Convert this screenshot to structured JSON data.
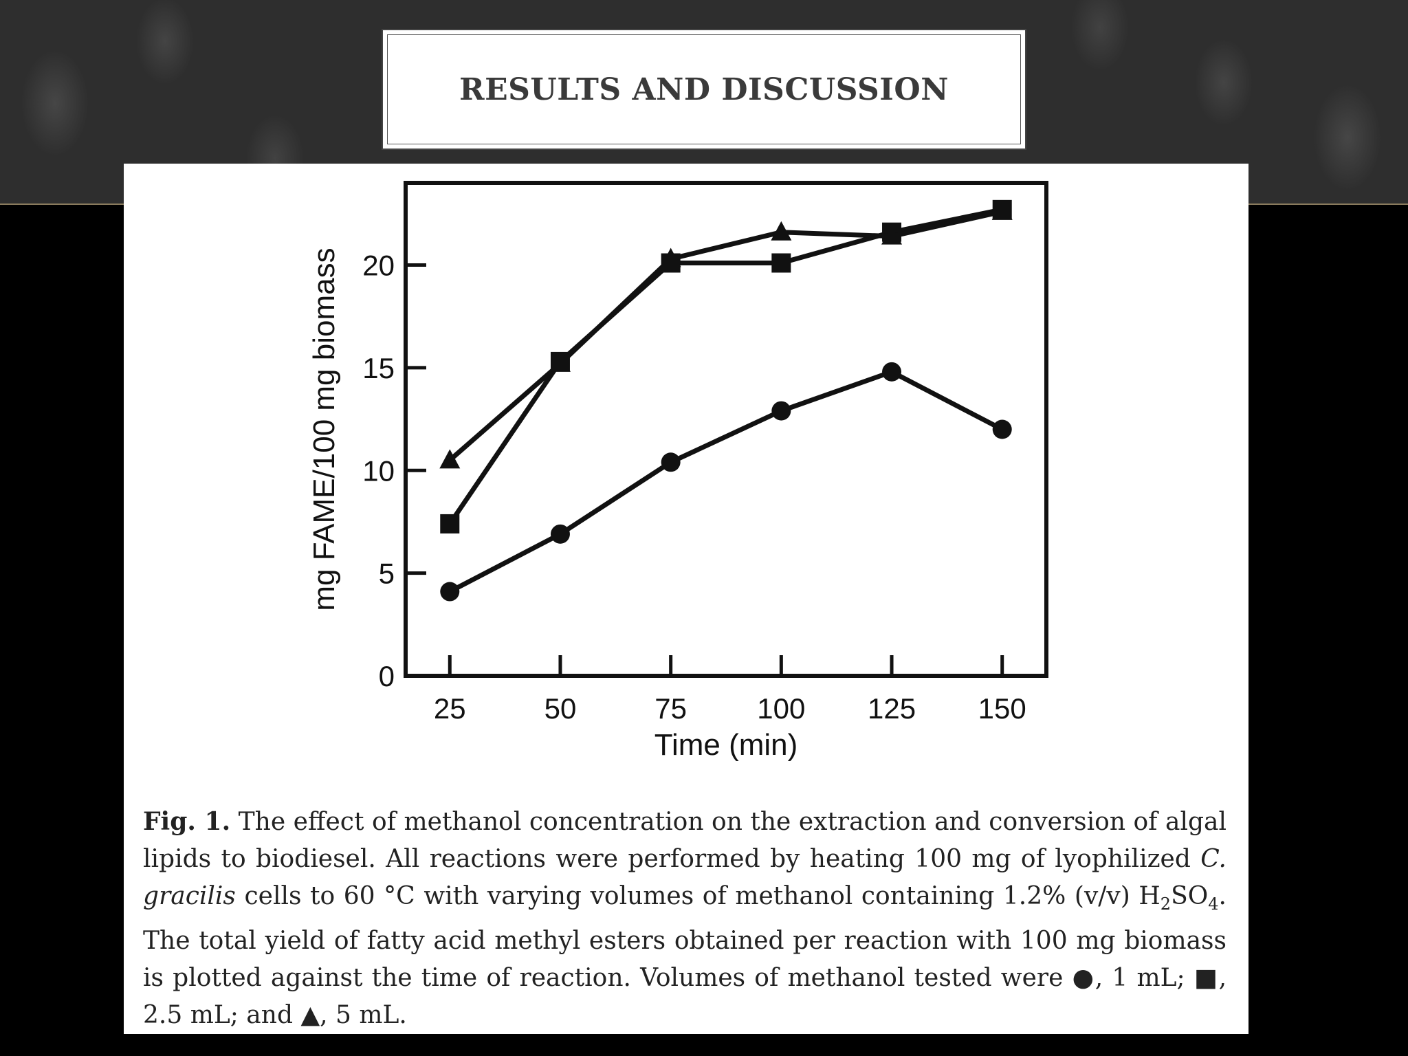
{
  "slide": {
    "title": "RESULTS AND DISCUSSION"
  },
  "caption": {
    "fig_label": "Fig. 1.",
    "text_1": " The effect of methanol concentration on the extraction and conversion of algal lipids to biodiesel. All reactions were performed by heating 100 mg of lyophilized ",
    "species": "C. gracilis",
    "text_2": " cells to 60 °C with varying volumes of methanol containing 1.2% (v/v) H",
    "sub_1": "2",
    "text_3": "SO",
    "sub_2": "4",
    "text_4": ". The total yield of fatty acid methyl esters obtained per reaction with 100 mg biomass is plotted against the time of reaction. Volumes of methanol tested were ",
    "sym_circle": "●",
    "leg_1": ", 1 mL; ",
    "sym_square": "■",
    "leg_2": ", 2.5 mL; and ",
    "sym_triangle": "▲",
    "leg_3": ", 5 mL."
  },
  "chart_data": {
    "type": "line",
    "title": "",
    "xlabel": "Time (min)",
    "ylabel": "mg FAME/100 mg biomass",
    "x": [
      25,
      50,
      75,
      100,
      125,
      150
    ],
    "xlim": [
      15,
      160
    ],
    "ylim": [
      0,
      24
    ],
    "xticks": [
      25,
      50,
      75,
      100,
      125,
      150
    ],
    "yticks": [
      0,
      5,
      10,
      15,
      20
    ],
    "grid": false,
    "series": [
      {
        "marker": "circle",
        "values": [
          4.1,
          6.9,
          10.4,
          12.9,
          14.8,
          12.0
        ]
      },
      {
        "marker": "square",
        "values": [
          7.4,
          15.3,
          20.1,
          20.1,
          21.6,
          22.7
        ]
      },
      {
        "marker": "triangle",
        "values": [
          10.5,
          15.2,
          20.3,
          21.6,
          21.4,
          22.6
        ]
      }
    ]
  }
}
